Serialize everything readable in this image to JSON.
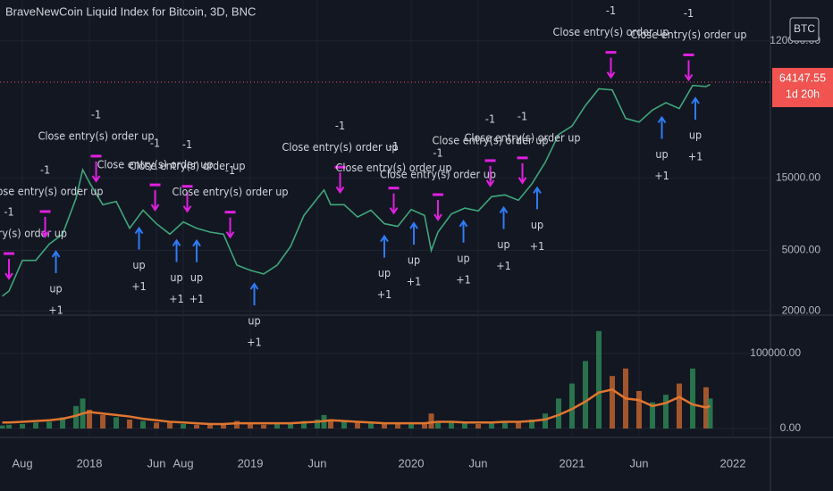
{
  "chart_data": [
    {
      "type": "line",
      "title": "BraveNewCoin Liquid Index for Bitcoin, 3D, BNC",
      "symbol": "BTC",
      "last_price": 64147.55,
      "countdown": "1d 20h",
      "log_scale": true,
      "color": "#3fa77a",
      "x": [
        -6.5,
        -6,
        -5,
        -4,
        -3,
        -2,
        -1,
        -0.5,
        0,
        1,
        2,
        3,
        4,
        5,
        6,
        7,
        8,
        9,
        10,
        11,
        12,
        13,
        14,
        15,
        16,
        17,
        17.5,
        18,
        19,
        20,
        21,
        22,
        23,
        24,
        25,
        25.5,
        26,
        27,
        28,
        29,
        30,
        31,
        32,
        33,
        34,
        35,
        36,
        37,
        38,
        39,
        40,
        41,
        42,
        43,
        44,
        45,
        46,
        46.3
      ],
      "values": [
        2500,
        2700,
        4300,
        4300,
        5500,
        6400,
        11000,
        17000,
        14000,
        10000,
        10500,
        7000,
        9200,
        7500,
        6400,
        7700,
        7000,
        6600,
        6400,
        4000,
        3700,
        3500,
        4000,
        5300,
        8500,
        11000,
        12500,
        10000,
        10000,
        8300,
        9200,
        7500,
        7200,
        9300,
        8500,
        5000,
        6600,
        8700,
        9500,
        9100,
        11300,
        11600,
        10700,
        13700,
        19000,
        29000,
        33000,
        45000,
        58000,
        57000,
        37000,
        35000,
        42000,
        47000,
        43000,
        61000,
        60000,
        62000
      ],
      "xlim": [
        -6.67,
        50.8
      ],
      "ylim": [
        1900,
        223000
      ],
      "yticks": [
        {
          "value": 2000,
          "label": "2000.00"
        },
        {
          "value": 5000,
          "label": "5000.00"
        },
        {
          "value": 15000,
          "label": "15000.00"
        },
        {
          "value": 120000,
          "label": "120000.00"
        }
      ],
      "close_signals": [
        {
          "x": -6,
          "qty": "-1",
          "label": "Close entry(s) order up"
        },
        {
          "x": -3.3,
          "qty": "-1",
          "label": "Close entry(s) order up"
        },
        {
          "x": 0.5,
          "qty": "-1",
          "label": "Close entry(s) order up"
        },
        {
          "x": 4.9,
          "qty": "-1",
          "label": "Close entry(s) order up"
        },
        {
          "x": 7.3,
          "qty": "-1",
          "label": "Close entry(s) order up"
        },
        {
          "x": 10.5,
          "qty": "-1",
          "label": "Close entry(s) order up"
        },
        {
          "x": 18.7,
          "qty": "-1",
          "label": "Close entry(s) order up"
        },
        {
          "x": 22.7,
          "qty": "-1",
          "label": "Close entry(s) order up"
        },
        {
          "x": 26,
          "qty": "-1",
          "label": "Close entry(s) order up"
        },
        {
          "x": 29.9,
          "qty": "-1",
          "label": "Close entry(s) order up"
        },
        {
          "x": 32.3,
          "qty": "-1",
          "label": "Close entry(s) order up"
        },
        {
          "x": 38.9,
          "qty": "-1",
          "label": "Close entry(s) order up"
        },
        {
          "x": 44.7,
          "qty": "-1",
          "label": "Close entry(s) order up"
        }
      ],
      "entry_signals": [
        {
          "x": -2.5,
          "qty": "+1",
          "label": "up"
        },
        {
          "x": 3.7,
          "qty": "+1",
          "label": "up"
        },
        {
          "x": 6.5,
          "qty": "+1",
          "label": "up"
        },
        {
          "x": 8,
          "qty": "+1",
          "label": "up"
        },
        {
          "x": 12.3,
          "qty": "+1",
          "label": "up"
        },
        {
          "x": 22,
          "qty": "+1",
          "label": "up"
        },
        {
          "x": 24.2,
          "qty": "+1",
          "label": "up"
        },
        {
          "x": 27.9,
          "qty": "+1",
          "label": "up"
        },
        {
          "x": 30.9,
          "qty": "+1",
          "label": "up"
        },
        {
          "x": 33.4,
          "qty": "+1",
          "label": "up"
        },
        {
          "x": 42.7,
          "qty": "+1",
          "label": "up"
        },
        {
          "x": 45.2,
          "qty": "+1",
          "label": "up"
        }
      ]
    },
    {
      "type": "bar",
      "colors": [
        "#2e8b57",
        "#c8662f"
      ],
      "ma_color": "#e0762f",
      "x": [
        -6.5,
        -6,
        -5,
        -4,
        -3,
        -2,
        -1,
        -0.5,
        0,
        1,
        2,
        3,
        4,
        5,
        6,
        7,
        8,
        9,
        10,
        11,
        12,
        13,
        14,
        15,
        16,
        17,
        17.5,
        18,
        19,
        20,
        21,
        22,
        23,
        24,
        25,
        25.5,
        26,
        27,
        28,
        29,
        30,
        31,
        32,
        33,
        34,
        35,
        36,
        37,
        38,
        39,
        40,
        41,
        42,
        43,
        44,
        45,
        46,
        46.3
      ],
      "values": [
        4000,
        5000,
        6000,
        8000,
        9000,
        15000,
        30000,
        40000,
        25000,
        18000,
        15000,
        12000,
        10000,
        8000,
        8000,
        6000,
        5000,
        5000,
        6000,
        10000,
        6000,
        5000,
        6000,
        8000,
        10000,
        12000,
        18000,
        12000,
        10000,
        8000,
        8000,
        7000,
        6000,
        7000,
        8000,
        20000,
        8000,
        9000,
        7000,
        6000,
        8000,
        10000,
        9000,
        12000,
        20000,
        40000,
        60000,
        90000,
        130000,
        70000,
        80000,
        50000,
        35000,
        45000,
        60000,
        80000,
        55000,
        40000
      ],
      "ma": [
        8000,
        8000,
        9000,
        10000,
        11000,
        13000,
        17000,
        20000,
        22000,
        20000,
        18000,
        16000,
        13000,
        11000,
        9000,
        8000,
        7000,
        6000,
        6000,
        7000,
        7000,
        7000,
        7000,
        7000,
        8000,
        9000,
        10000,
        11000,
        10000,
        9000,
        8000,
        7000,
        7000,
        7000,
        7000,
        8000,
        9000,
        9000,
        8000,
        8000,
        8000,
        9000,
        9000,
        10000,
        12000,
        18000,
        26000,
        36000,
        48000,
        52000,
        40000,
        38000,
        30000,
        34000,
        42000,
        32000,
        28000,
        30000
      ],
      "xlim": [
        -6.67,
        50.8
      ],
      "ylim": [
        0,
        150000
      ],
      "yticks": [
        {
          "value": 0,
          "label": "0.00"
        },
        {
          "value": 100000,
          "label": "100000.00"
        }
      ],
      "xticks": [
        {
          "value": -5,
          "label": "Aug"
        },
        {
          "value": 0,
          "label": "2018"
        },
        {
          "value": 5,
          "label": "Jun"
        },
        {
          "value": 7,
          "label": "Aug"
        },
        {
          "value": 12,
          "label": "2019"
        },
        {
          "value": 17,
          "label": "Jun"
        },
        {
          "value": 24,
          "label": "2020"
        },
        {
          "value": 29,
          "label": "Jun"
        },
        {
          "value": 36,
          "label": "2021"
        },
        {
          "value": 41,
          "label": "Jun"
        },
        {
          "value": 48,
          "label": "2022"
        }
      ]
    }
  ]
}
